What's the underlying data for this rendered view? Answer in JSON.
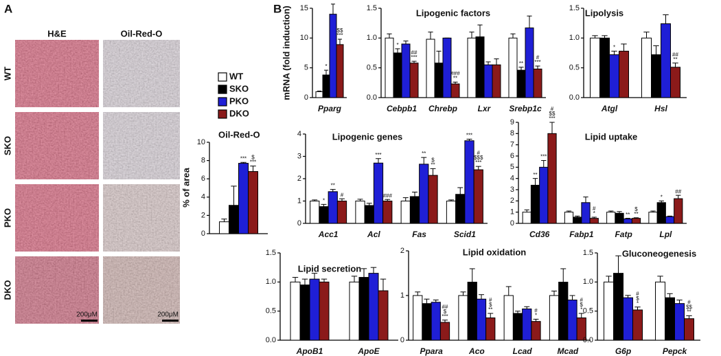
{
  "panel_a": {
    "label": "A",
    "columns": [
      "H&E",
      "Oil-Red-O"
    ],
    "rows": [
      "WT",
      "SKO",
      "PKO",
      "DKO"
    ],
    "scale_bars": [
      "200μM",
      "200μM"
    ]
  },
  "panel_b_label": "B",
  "legend": [
    {
      "name": "WT",
      "color": "#ffffff"
    },
    {
      "name": "SKO",
      "color": "#000000"
    },
    {
      "name": "PKO",
      "color": "#1f1fd6"
    },
    {
      "name": "DKO",
      "color": "#8b1a1a"
    }
  ],
  "chart_data": [
    {
      "type": "bar",
      "title": "Oil-Red-O",
      "ylabel": "% of area",
      "ylim": [
        0,
        10
      ],
      "yticks": [
        0,
        2,
        4,
        6,
        8,
        10
      ],
      "categories": [
        null
      ],
      "series": [
        {
          "values": [
            1.3
          ],
          "errors": [
            0.3
          ],
          "annotations": [
            []
          ]
        },
        {
          "values": [
            3.1
          ],
          "errors": [
            2.1
          ],
          "annotations": [
            []
          ]
        },
        {
          "values": [
            7.7
          ],
          "errors": [
            0.1
          ],
          "annotations": [
            [
              "***"
            ]
          ]
        },
        {
          "values": [
            6.8
          ],
          "errors": [
            0.6
          ],
          "annotations": [
            [
              "$",
              "***"
            ]
          ]
        }
      ]
    },
    {
      "type": "bar",
      "ylabel": "mRNA (fold induction)",
      "ylim": [
        0,
        15
      ],
      "yticks": [
        0,
        5,
        10,
        15
      ],
      "categories": [
        "Pparg"
      ],
      "series": [
        {
          "values": [
            1.0
          ],
          "errors": [
            0.1
          ],
          "annotations": [
            []
          ]
        },
        {
          "values": [
            3.8
          ],
          "errors": [
            0.8
          ],
          "annotations": [
            [
              "*"
            ]
          ]
        },
        {
          "values": [
            14.0
          ],
          "errors": [
            1.7
          ],
          "annotations": [
            [
              "***"
            ]
          ]
        },
        {
          "values": [
            8.9
          ],
          "errors": [
            0.9
          ],
          "annotations": [
            [
              "$$",
              "***"
            ]
          ]
        }
      ]
    },
    {
      "type": "bar",
      "title": "Lipogenic  factors",
      "ylim": [
        0,
        1.5
      ],
      "yticks": [
        {
          "value": 0,
          "label": "0.0"
        },
        {
          "value": 0.5,
          "label": "0.5"
        },
        {
          "value": 1,
          "label": "1.0"
        },
        {
          "value": 1.5,
          "label": "1.5"
        }
      ],
      "categories": [
        "Cebpb1",
        "Chrebp",
        "Lxr",
        "Srebp1c"
      ],
      "series": [
        {
          "values": [
            1.0,
            0.98,
            1.0,
            1.0
          ],
          "errors": [
            0.07,
            0.12,
            0.1,
            0.07
          ],
          "annotations": [
            [],
            [],
            [],
            []
          ]
        },
        {
          "values": [
            0.75,
            0.58,
            1.02,
            0.46
          ],
          "errors": [
            0.07,
            0.2,
            0.2,
            0.05
          ],
          "annotations": [
            [
              "*"
            ],
            [],
            [],
            [
              "**"
            ]
          ]
        },
        {
          "values": [
            0.9,
            1.0,
            0.55,
            1.17
          ],
          "errors": [
            0.05,
            0.0,
            0.05,
            0.2
          ],
          "annotations": [
            [],
            [],
            [],
            []
          ]
        },
        {
          "values": [
            0.58,
            0.23,
            0.55,
            0.48
          ],
          "errors": [
            0.03,
            0.03,
            0.1,
            0.05
          ],
          "annotations": [
            [
              "##",
              "***"
            ],
            [
              "###",
              "**"
            ],
            [],
            [
              "#",
              "***"
            ]
          ]
        }
      ]
    },
    {
      "type": "bar",
      "title": "Lipolysis",
      "ylim": [
        0,
        1.5
      ],
      "yticks": [
        {
          "value": 0,
          "label": "0.0"
        },
        {
          "value": 0.5,
          "label": "0.5"
        },
        {
          "value": 1,
          "label": "1.0"
        },
        {
          "value": 1.5,
          "label": "1.5"
        }
      ],
      "categories": [
        "Atgl",
        "Hsl"
      ],
      "series": [
        {
          "values": [
            1.0,
            1.0
          ],
          "errors": [
            0.04,
            0.1
          ],
          "annotations": [
            [],
            []
          ]
        },
        {
          "values": [
            1.0,
            0.72
          ],
          "errors": [
            0.04,
            0.15
          ],
          "annotations": [
            [],
            []
          ]
        },
        {
          "values": [
            0.72,
            1.24
          ],
          "errors": [
            0.06,
            0.15
          ],
          "annotations": [
            [
              "*"
            ],
            []
          ]
        },
        {
          "values": [
            0.78,
            0.51
          ],
          "errors": [
            0.12,
            0.07
          ],
          "annotations": [
            [],
            [
              "##",
              "**"
            ]
          ]
        }
      ]
    },
    {
      "type": "bar",
      "title": "Lipogenic genes",
      "ylim": [
        0,
        4
      ],
      "yticks": [
        0,
        1,
        2,
        3,
        4
      ],
      "categories": [
        "Acc1",
        "Acl",
        "Fas",
        "Scid1"
      ],
      "series": [
        {
          "values": [
            1.0,
            1.0,
            1.0,
            1.0
          ],
          "errors": [
            0.05,
            0.08,
            0.15,
            0.05
          ],
          "annotations": [
            [],
            [],
            [],
            []
          ]
        },
        {
          "values": [
            0.75,
            0.8,
            1.2,
            1.3
          ],
          "errors": [
            0.1,
            0.1,
            0.2,
            0.3
          ],
          "annotations": [
            [
              "*"
            ],
            [],
            [],
            []
          ]
        },
        {
          "values": [
            1.42,
            2.7,
            2.65,
            3.7
          ],
          "errors": [
            0.1,
            0.2,
            0.3,
            0.07
          ],
          "annotations": [
            [
              "**"
            ],
            [
              "***"
            ],
            [
              "**"
            ],
            [
              "***"
            ]
          ]
        },
        {
          "values": [
            1.0,
            1.0,
            2.15,
            2.4
          ],
          "errors": [
            0.1,
            0.07,
            0.3,
            0.15
          ],
          "annotations": [
            [
              "#"
            ],
            [
              "###"
            ],
            [
              "$",
              "**"
            ],
            [
              "#",
              "$$$",
              "***"
            ]
          ]
        }
      ]
    },
    {
      "type": "bar",
      "title": "Lipid uptake",
      "ylim": [
        0,
        9
      ],
      "yticks": [
        0,
        1,
        2,
        3,
        4,
        5,
        6,
        7,
        8,
        9
      ],
      "categories": [
        "Cd36",
        "Fabp1",
        "Fatp",
        "Lpl"
      ],
      "series": [
        {
          "values": [
            1.0,
            1.0,
            1.0,
            1.0
          ],
          "errors": [
            0.2,
            0.1,
            0.1,
            0.1
          ],
          "annotations": [
            [],
            [],
            [],
            []
          ]
        },
        {
          "values": [
            3.4,
            0.55,
            0.9,
            1.85
          ],
          "errors": [
            0.6,
            0.1,
            0.15,
            0.15
          ],
          "annotations": [
            [
              "**"
            ],
            [],
            [],
            [
              "*"
            ]
          ]
        },
        {
          "values": [
            5.0,
            1.85,
            0.4,
            0.6
          ],
          "errors": [
            0.6,
            0.5,
            0.05,
            0.05
          ],
          "annotations": [
            [
              "***"
            ],
            [],
            [
              "**"
            ],
            []
          ]
        },
        {
          "values": [
            8.0,
            0.45,
            0.45,
            2.2
          ],
          "errors": [
            1.0,
            0.1,
            0.05,
            0.3
          ],
          "annotations": [
            [
              "#",
              "$$",
              "***"
            ],
            [
              "#",
              "*"
            ],
            [
              "$",
              "**"
            ],
            [
              "##"
            ]
          ]
        }
      ]
    },
    {
      "type": "bar",
      "title": "Lipid secretion",
      "ylim": [
        0,
        1.5
      ],
      "yticks": [
        {
          "value": 0,
          "label": "0.0"
        },
        {
          "value": 0.5,
          "label": "0.5"
        },
        {
          "value": 1,
          "label": "1.0"
        },
        {
          "value": 1.5,
          "label": "1.5"
        }
      ],
      "categories": [
        "ApoB1",
        "ApoE"
      ],
      "series": [
        {
          "values": [
            1.0,
            1.0
          ],
          "errors": [
            0.08,
            0.1
          ],
          "annotations": [
            [],
            []
          ]
        },
        {
          "values": [
            0.95,
            1.08
          ],
          "errors": [
            0.1,
            0.15
          ],
          "annotations": [
            [],
            []
          ]
        },
        {
          "values": [
            1.05,
            1.15
          ],
          "errors": [
            0.1,
            0.1
          ],
          "annotations": [
            [],
            []
          ]
        },
        {
          "values": [
            1.0,
            0.85
          ],
          "errors": [
            0.05,
            0.2
          ],
          "annotations": [
            [],
            []
          ]
        }
      ]
    },
    {
      "type": "bar",
      "title": "Lipid oxidation",
      "ylim": [
        0,
        2
      ],
      "yticks": [
        0,
        1,
        2
      ],
      "categories": [
        "Ppara",
        "Aco",
        "Lcad",
        "Mcad"
      ],
      "series": [
        {
          "values": [
            1.0,
            1.0,
            1.0,
            1.0
          ],
          "errors": [
            0.08,
            0.08,
            0.2,
            0.1
          ],
          "annotations": [
            [],
            [],
            [],
            []
          ]
        },
        {
          "values": [
            0.82,
            1.3,
            0.6,
            1.3
          ],
          "errors": [
            0.1,
            0.3,
            0.05,
            0.3
          ],
          "annotations": [
            [],
            [],
            [],
            []
          ]
        },
        {
          "values": [
            0.85,
            0.92,
            0.7,
            0.9
          ],
          "errors": [
            0.05,
            0.1,
            0.05,
            0.1
          ],
          "annotations": [
            [],
            [],
            [],
            []
          ]
        },
        {
          "values": [
            0.4,
            0.5,
            0.42,
            0.5
          ],
          "errors": [
            0.05,
            0.1,
            0.05,
            0.1
          ],
          "annotations": [
            [
              "##",
              "$",
              "***"
            ],
            [
              "#",
              "$",
              "**"
            ],
            [
              "#",
              "*"
            ],
            [
              "#",
              "$",
              "*"
            ]
          ]
        }
      ]
    },
    {
      "type": "bar",
      "title": "Gluconeogenesis",
      "ylim": [
        0,
        1.5
      ],
      "yticks": [
        {
          "value": 0,
          "label": "0.0"
        },
        {
          "value": 0.5,
          "label": "0.5"
        },
        {
          "value": 1,
          "label": "1.0"
        },
        {
          "value": 1.5,
          "label": "1.5"
        }
      ],
      "categories": [
        "G6p",
        "Pepck"
      ],
      "series": [
        {
          "values": [
            1.0,
            1.0
          ],
          "errors": [
            0.1,
            0.1
          ],
          "annotations": [
            [],
            []
          ]
        },
        {
          "values": [
            1.15,
            0.73
          ],
          "errors": [
            0.3,
            0.07
          ],
          "annotations": [
            [],
            []
          ]
        },
        {
          "values": [
            0.73,
            0.63
          ],
          "errors": [
            0.04,
            0.06
          ],
          "annotations": [
            [],
            []
          ]
        },
        {
          "values": [
            0.52,
            0.37
          ],
          "errors": [
            0.05,
            0.05
          ],
          "annotations": [
            [
              "#",
              "$",
              "*"
            ],
            [
              "#",
              "$$",
              "**"
            ]
          ]
        }
      ]
    }
  ]
}
